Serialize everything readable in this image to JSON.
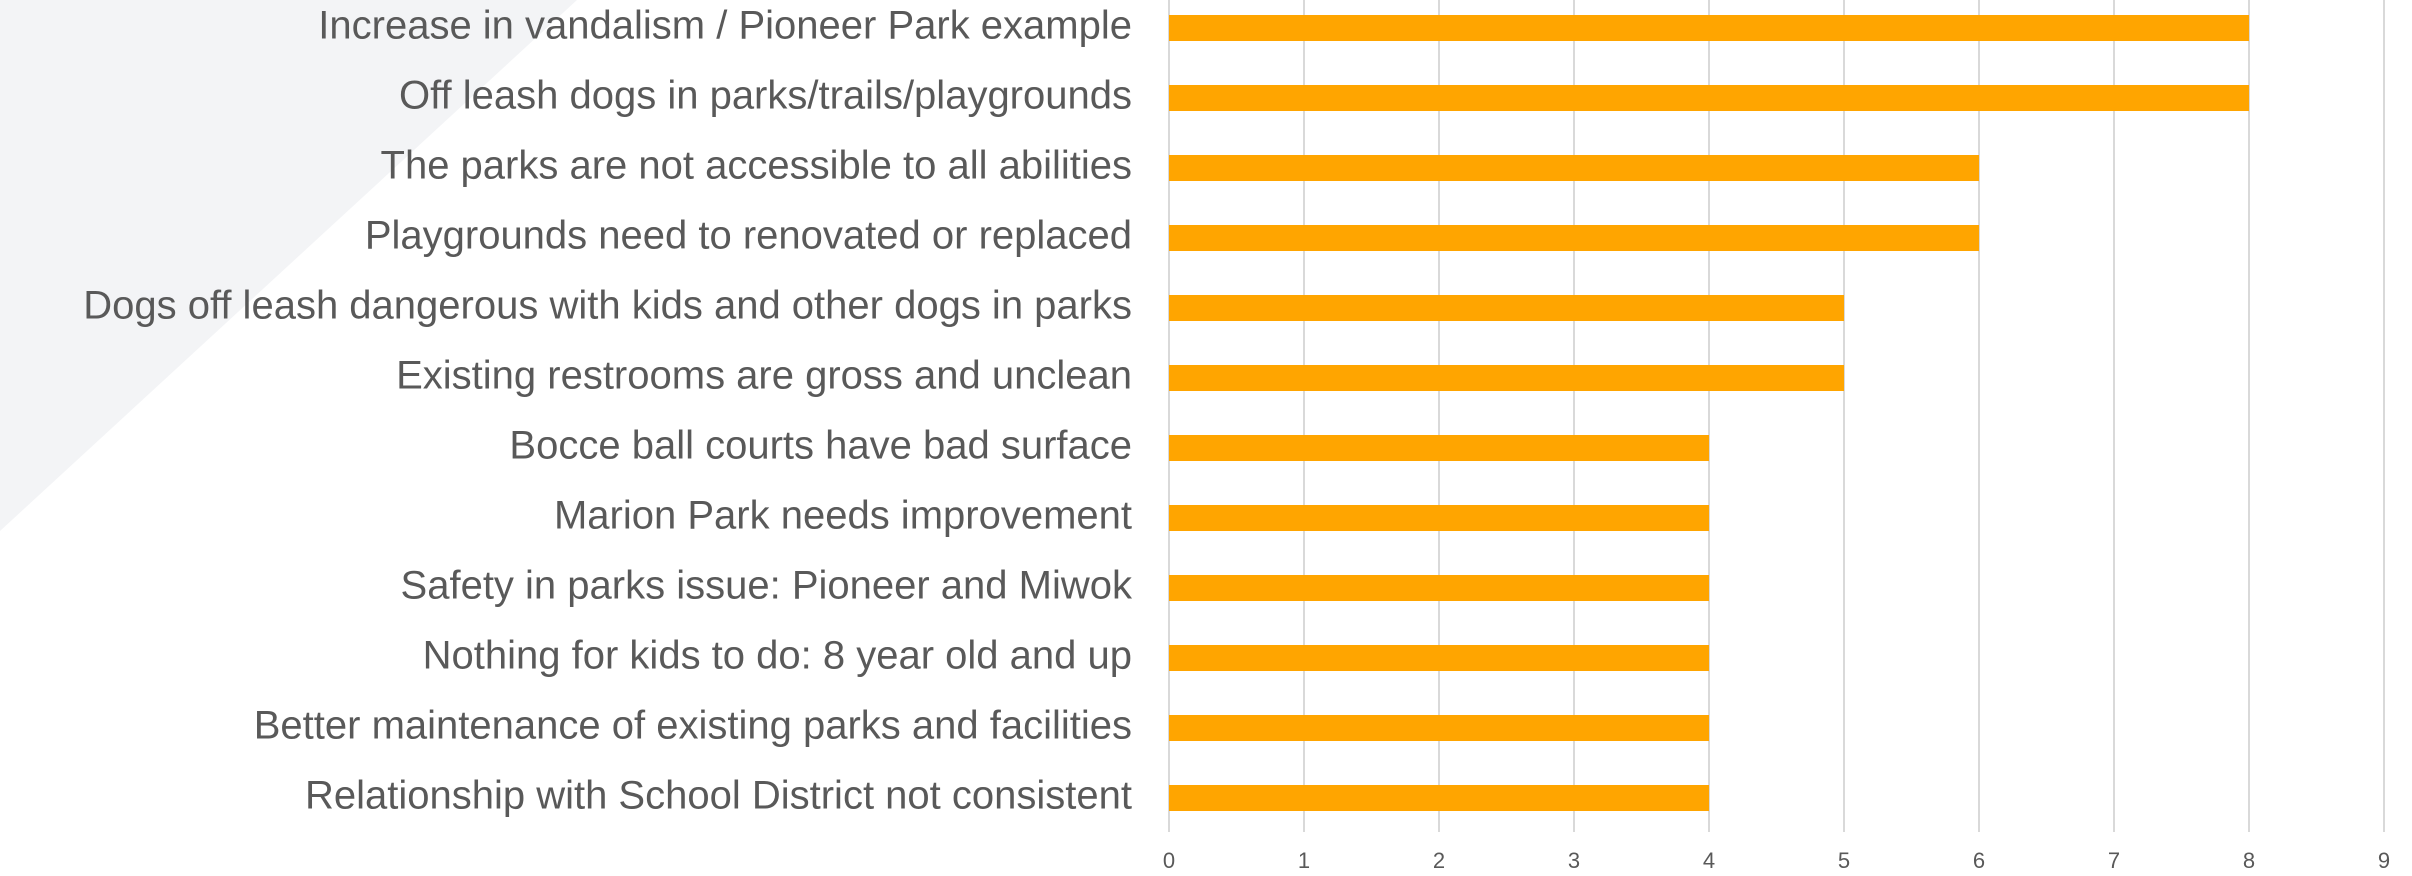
{
  "chart_data": {
    "type": "barh",
    "categories": [
      "Increase in vandalism / Pioneer Park example",
      "Off leash dogs in parks/trails/playgrounds",
      "The parks are not accessible to all abilities",
      "Playgrounds need to renovated or replaced",
      "Dogs off leash dangerous with kids and other dogs in parks",
      "Existing restrooms are gross and unclean",
      "Bocce ball courts have bad surface",
      "Marion Park needs improvement",
      "Safety in parks issue: Pioneer and Miwok",
      "Nothing for kids to do: 8 year old and up",
      "Better maintenance of existing parks and facilities",
      "Relationship with School District not consistent"
    ],
    "values": [
      8,
      8,
      6,
      6,
      5,
      5,
      4,
      4,
      4,
      4,
      4,
      4
    ],
    "color": "#ffa500",
    "xlim": [
      0,
      9
    ],
    "xticks": [
      0,
      1,
      2,
      3,
      4,
      5,
      6,
      7,
      8,
      9
    ],
    "grid": true
  }
}
